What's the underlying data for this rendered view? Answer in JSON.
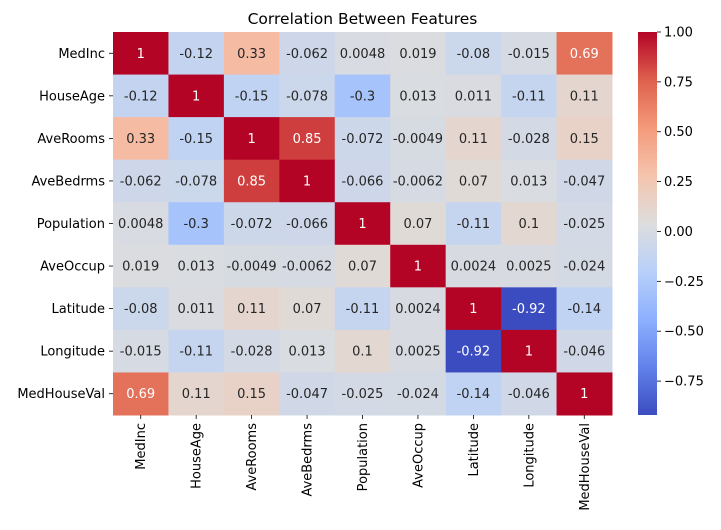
{
  "chart_data": {
    "type": "heatmap",
    "title": "Correlation Between Features",
    "variables": [
      "MedInc",
      "HouseAge",
      "AveRooms",
      "AveBedrms",
      "Population",
      "AveOccup",
      "Latitude",
      "Longitude",
      "MedHouseVal"
    ],
    "values": [
      [
        1,
        -0.12,
        0.33,
        -0.062,
        0.0048,
        0.019,
        -0.08,
        -0.015,
        0.69
      ],
      [
        -0.12,
        1,
        -0.15,
        -0.078,
        -0.3,
        0.013,
        0.011,
        -0.11,
        0.11
      ],
      [
        0.33,
        -0.15,
        1,
        0.85,
        -0.072,
        -0.0049,
        0.11,
        -0.028,
        0.15
      ],
      [
        -0.062,
        -0.078,
        0.85,
        1,
        -0.066,
        -0.0062,
        0.07,
        0.013,
        -0.047
      ],
      [
        0.0048,
        -0.3,
        -0.072,
        -0.066,
        1,
        0.07,
        -0.11,
        0.1,
        -0.025
      ],
      [
        0.019,
        0.013,
        -0.0049,
        -0.0062,
        0.07,
        1,
        0.0024,
        0.0025,
        -0.024
      ],
      [
        -0.08,
        0.011,
        0.11,
        0.07,
        -0.11,
        0.0024,
        1,
        -0.92,
        -0.14
      ],
      [
        -0.015,
        -0.11,
        -0.028,
        0.013,
        0.1,
        0.0025,
        -0.92,
        1,
        -0.046
      ],
      [
        0.69,
        0.11,
        0.15,
        -0.047,
        -0.025,
        -0.024,
        -0.14,
        -0.046,
        1
      ]
    ],
    "colormap": "coolwarm",
    "color_range": [
      -0.92,
      1.0
    ],
    "colorbar_ticks": [
      1.0,
      0.75,
      0.5,
      0.25,
      0.0,
      -0.25,
      -0.5,
      -0.75
    ],
    "colorbar_tick_labels": [
      "1.00",
      "0.75",
      "0.50",
      "0.25",
      "0.00",
      "−0.25",
      "−0.50",
      "−0.75"
    ],
    "annotations": true,
    "grid": false
  }
}
